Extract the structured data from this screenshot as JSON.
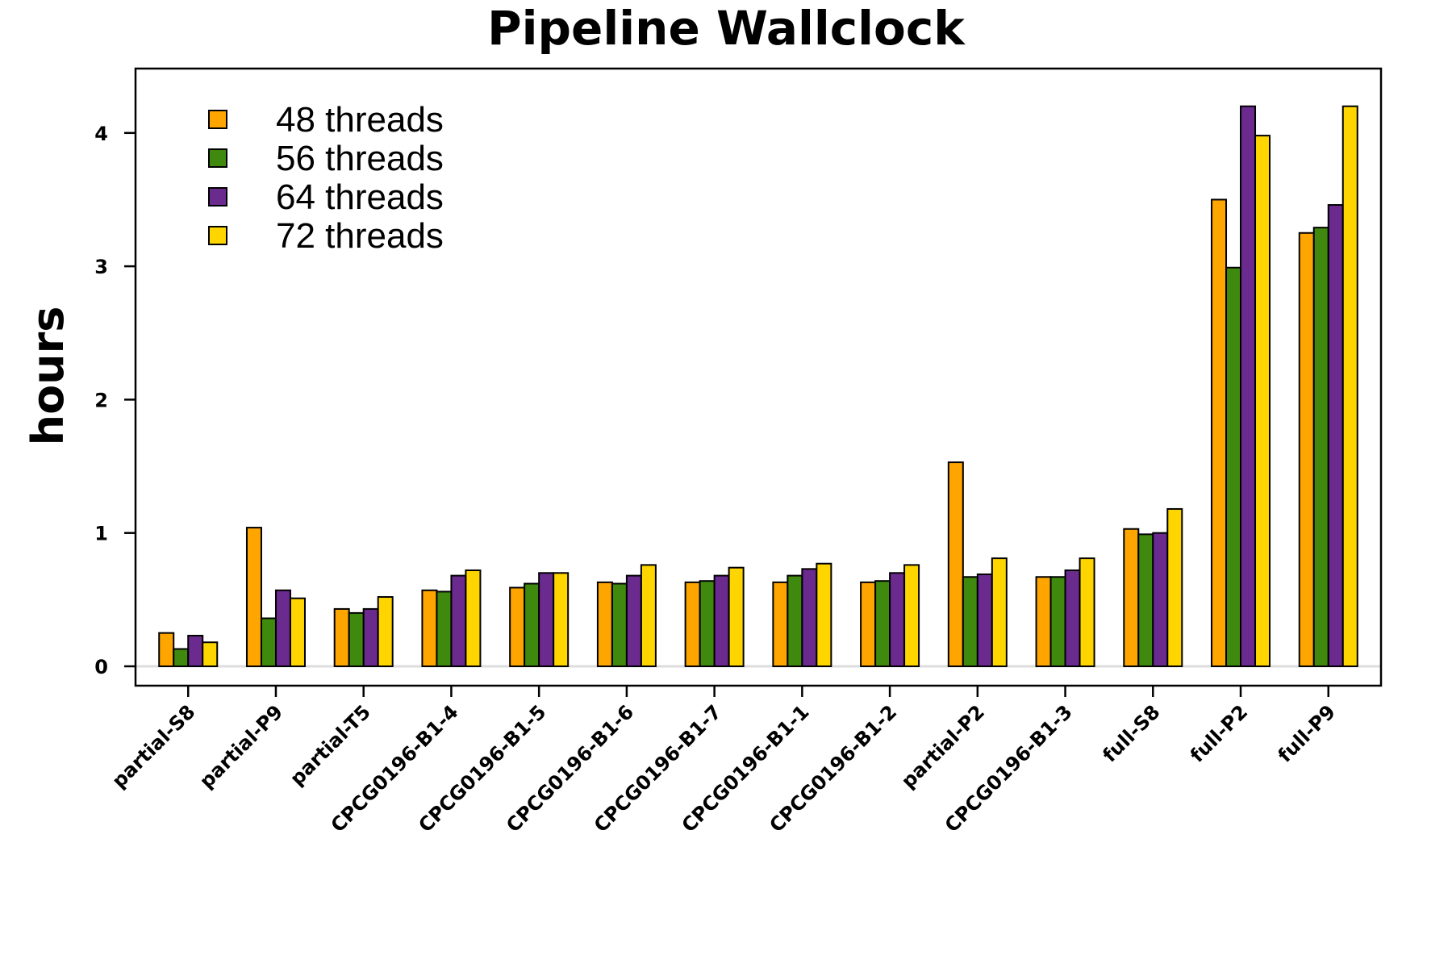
{
  "chart_data": {
    "type": "bar",
    "title": "Pipeline Wallclock",
    "xlabel": "",
    "ylabel": "hours",
    "ylim": [
      -0.15,
      4.5
    ],
    "yticks": [
      "0",
      "1",
      "2",
      "3",
      "4"
    ],
    "grid": false,
    "legend_position": "top-left",
    "categories": [
      "partial-S8",
      "partial-P9",
      "partial-T5",
      "CPCG0196-B1-4",
      "CPCG0196-B1-5",
      "CPCG0196-B1-6",
      "CPCG0196-B1-7",
      "CPCG0196-B1-1",
      "CPCG0196-B1-2",
      "partial-P2",
      "CPCG0196-B1-3",
      "full-S8",
      "full-P2",
      "full-P9"
    ],
    "series": [
      {
        "name": "48 threads",
        "color": "#FFA500",
        "values": [
          0.25,
          1.04,
          0.43,
          0.57,
          0.59,
          0.63,
          0.63,
          0.63,
          0.63,
          1.53,
          0.67,
          1.03,
          3.5,
          3.25
        ]
      },
      {
        "name": "56 threads",
        "color": "#3F8A0E",
        "values": [
          0.13,
          0.36,
          0.4,
          0.56,
          0.62,
          0.62,
          0.64,
          0.68,
          0.64,
          0.67,
          0.67,
          0.99,
          2.99,
          3.29
        ]
      },
      {
        "name": "64 threads",
        "color": "#6A2A8E",
        "values": [
          0.23,
          0.57,
          0.43,
          0.68,
          0.7,
          0.68,
          0.68,
          0.73,
          0.7,
          0.69,
          0.72,
          1.0,
          4.2,
          3.46
        ]
      },
      {
        "name": "72 threads",
        "color": "#FFD500",
        "values": [
          0.18,
          0.51,
          0.52,
          0.72,
          0.7,
          0.76,
          0.74,
          0.77,
          0.76,
          0.81,
          0.81,
          1.18,
          3.98,
          4.2
        ]
      }
    ]
  }
}
